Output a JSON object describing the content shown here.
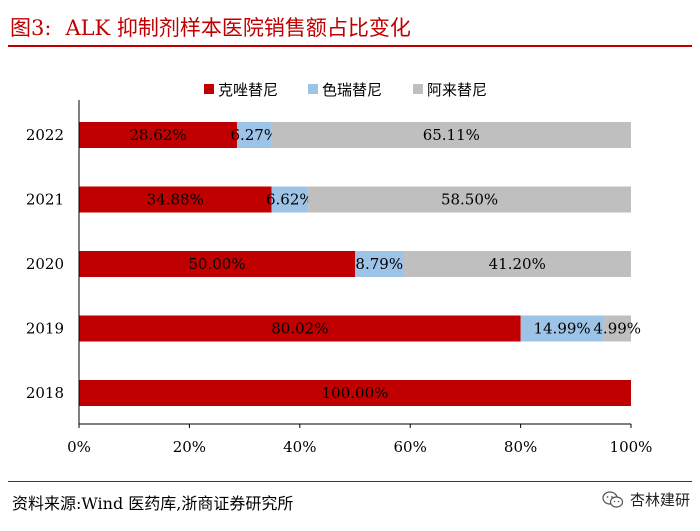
{
  "header": {
    "figure_label": "图3:",
    "title": "ALK 抑制剂样本医院销售额占比变化"
  },
  "footer": {
    "source": "资料来源:Wind 医药库,浙商证券研究所",
    "watermark": "杏林建研",
    "watermark_icon": "wechat-icon"
  },
  "chart_data": {
    "type": "bar",
    "orientation": "horizontal",
    "stacked": true,
    "percent": true,
    "categories": [
      "2022",
      "2021",
      "2020",
      "2019",
      "2018"
    ],
    "series": [
      {
        "name": "克唑替尼",
        "color": "#c00000",
        "values": [
          28.62,
          34.88,
          50.0,
          80.02,
          100.0
        ],
        "labels": [
          "28.62%",
          "34.88%",
          "50.00%",
          "80.02%",
          "100.00%"
        ]
      },
      {
        "name": "色瑞替尼",
        "color": "#9dc3e6",
        "values": [
          6.27,
          6.62,
          8.79,
          14.99,
          0
        ],
        "labels": [
          "6.27%",
          "6.62%",
          "8.79%",
          "14.99%",
          ""
        ]
      },
      {
        "name": "阿来替尼",
        "color": "#bfbfbf",
        "values": [
          65.11,
          58.5,
          41.2,
          4.99,
          0
        ],
        "labels": [
          "65.11%",
          "58.50%",
          "41.20%",
          "4.99%",
          ""
        ]
      }
    ],
    "xlim": [
      0,
      100
    ],
    "xticks": [
      "0%",
      "20%",
      "40%",
      "60%",
      "80%",
      "100%"
    ],
    "xlabel": "",
    "ylabel": "",
    "legend_position": "top",
    "grid": false
  }
}
